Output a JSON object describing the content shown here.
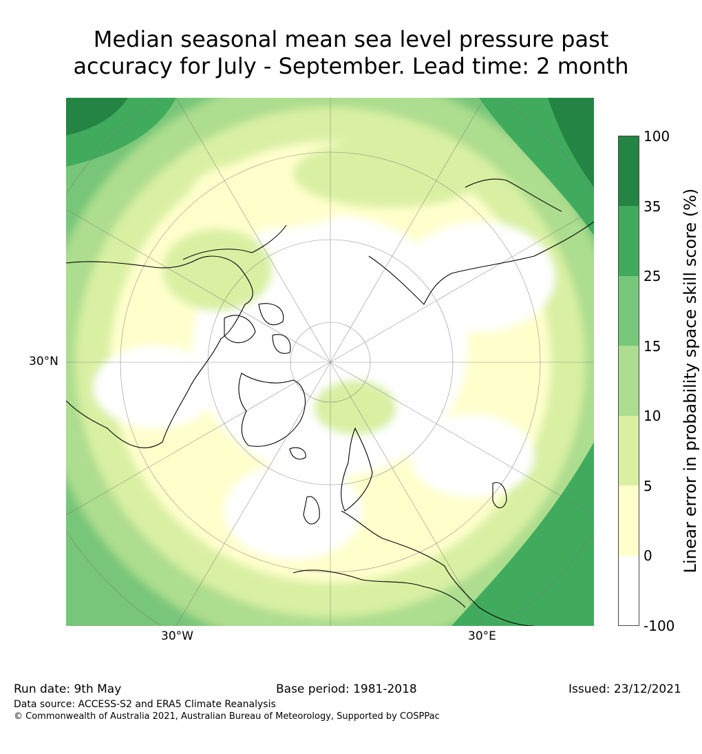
{
  "title": {
    "line1": "Median seasonal mean sea level pressure past",
    "line2": "accuracy for July - September. Lead time: 2 month"
  },
  "map": {
    "projection": "north polar stereographic",
    "lat_label": "30°N",
    "lon_labels": [
      "30°W",
      "30°E"
    ]
  },
  "colorbar": {
    "title": "Linear error in probability space skill score (%)",
    "ticks": [
      "100",
      "35",
      "25",
      "15",
      "10",
      "5",
      "0",
      "-100"
    ],
    "bins": [
      {
        "range": "-100 to 0",
        "color": "#ffffff"
      },
      {
        "range": "0 to 5",
        "color": "#ffffcc"
      },
      {
        "range": "5 to 10",
        "color": "#d9f0a3"
      },
      {
        "range": "10 to 15",
        "color": "#addd8e"
      },
      {
        "range": "15 to 25",
        "color": "#78c679"
      },
      {
        "range": "25 to 35",
        "color": "#41ab5d"
      },
      {
        "range": "35 to 100",
        "color": "#238443"
      }
    ]
  },
  "footer": {
    "run_date": "Run date: 9th May",
    "base_period": "Base period: 1981-2018",
    "issued": "Issued: 23/12/2021",
    "data_source": "Data source: ACCESS-S2 and ERA5 Climate Reanalysis",
    "copyright": "© Commonwealth of Australia 2021, Australian Bureau of Meteorology, Supported by COSPPac"
  }
}
